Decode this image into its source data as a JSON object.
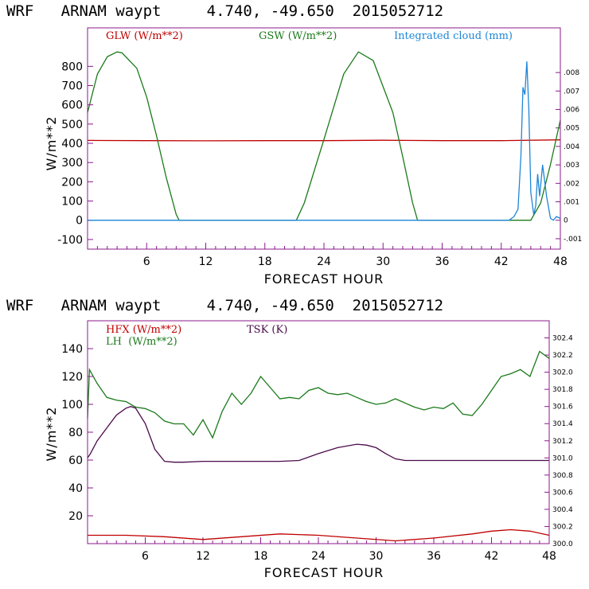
{
  "chart_data": [
    {
      "type": "line",
      "title": "WRF   ARNAM waypt     4.740, -49.650  2015052712",
      "xlabel": "FORECAST HOUR",
      "ylabel": "W/m**2",
      "xlim": [
        0,
        48
      ],
      "ylim": [
        -150,
        1000
      ],
      "x_ticks": [
        6,
        12,
        18,
        24,
        30,
        36,
        42,
        48
      ],
      "y_ticks": [
        -100,
        0,
        100,
        200,
        300,
        400,
        500,
        600,
        700,
        800
      ],
      "y2_ticks": [
        ".008",
        ".007",
        ".006",
        ".005",
        ".004",
        ".003",
        ".002",
        ".001",
        "0",
        "-.001"
      ],
      "legend": [
        "GLW (W/m**2)",
        "GSW (W/m**2)",
        "Integrated cloud (mm)"
      ],
      "colors": {
        "glw": "#c00000",
        "gsw": "#1a7a1a",
        "cloud": "#1f86d6"
      },
      "series": [
        {
          "name": "GLW (W/m**2)",
          "x": [
            0,
            6,
            12,
            18,
            24,
            30,
            36,
            42,
            48
          ],
          "values": [
            415,
            414,
            413,
            414,
            414,
            416,
            414,
            414,
            418
          ]
        },
        {
          "name": "GSW (W/m**2)",
          "x": [
            0,
            1,
            2,
            3,
            3.5,
            5,
            6,
            7,
            8,
            9,
            9.3,
            21.2,
            22,
            24,
            26,
            27.5,
            29,
            31,
            32,
            33,
            33.5,
            45,
            46,
            47,
            48
          ],
          "values": [
            560,
            760,
            850,
            875,
            870,
            790,
            640,
            440,
            220,
            30,
            0,
            0,
            90,
            420,
            760,
            875,
            830,
            560,
            330,
            90,
            0,
            0,
            90,
            290,
            520
          ]
        },
        {
          "name": "Integrated cloud (mm)",
          "x": [
            0,
            42.8,
            43.3,
            43.7,
            44,
            44.2,
            44.4,
            44.6,
            44.8,
            45,
            45.3,
            45.5,
            45.7,
            45.9,
            46.2,
            46.6,
            47,
            47.3,
            47.6,
            48
          ],
          "values": [
            0,
            0,
            0.0002,
            0.0006,
            0.0035,
            0.0072,
            0.0068,
            0.0086,
            0.006,
            0.0015,
            0.0003,
            0.0008,
            0.0025,
            0.0013,
            0.003,
            0.0013,
            0.0001,
            0,
            0.0002,
            0.0001
          ]
        }
      ]
    },
    {
      "type": "line",
      "title": "WRF   ARNAM waypt     4.740, -49.650  2015052712",
      "xlabel": "FORECAST HOUR",
      "ylabel": "W/m**2",
      "xlim": [
        0,
        48
      ],
      "ylim": [
        0,
        160
      ],
      "x_ticks": [
        6,
        12,
        18,
        24,
        30,
        36,
        42,
        48
      ],
      "y_ticks": [
        20,
        40,
        60,
        80,
        100,
        120,
        140
      ],
      "y2lim": [
        300.0,
        302.6
      ],
      "y2_ticks": [
        "302.4",
        "302.2",
        "302.0",
        "301.8",
        "301.6",
        "301.4",
        "301.2",
        "301.0",
        "300.8",
        "300.6",
        "300.4",
        "300.2",
        "300.0"
      ],
      "legend": [
        "HFX (W/m**2)",
        "LH  (W/m**2)",
        "TSK (K)"
      ],
      "colors": {
        "hfx": "#c00000",
        "lh": "#1a7a1a",
        "tsk": "#4a0a4a"
      },
      "series": [
        {
          "name": "HFX (W/m**2)",
          "x": [
            0,
            4,
            8,
            12,
            16,
            20,
            24,
            28,
            32,
            36,
            40,
            42,
            44,
            46,
            48
          ],
          "values": [
            6,
            6,
            5,
            3,
            5,
            7,
            6,
            4,
            2,
            4,
            7,
            9,
            10,
            9,
            6
          ]
        },
        {
          "name": "LH  (W/m**2)",
          "x": [
            0,
            0.2,
            1,
            2,
            3,
            4,
            5,
            6,
            7,
            8,
            9,
            10,
            11,
            12,
            13,
            14,
            15,
            16,
            17,
            18,
            19,
            20,
            21,
            22,
            23,
            24,
            25,
            26,
            27,
            28,
            29,
            30,
            31,
            32,
            33,
            34,
            35,
            36,
            37,
            38,
            39,
            40,
            41,
            42,
            43,
            44,
            45,
            46,
            47,
            48
          ],
          "values": [
            90,
            125,
            115,
            105,
            103,
            102,
            98,
            97,
            94,
            88,
            86,
            86,
            78,
            89,
            76,
            95,
            108,
            100,
            108,
            120,
            112,
            104,
            105,
            104,
            110,
            112,
            108,
            107,
            108,
            105,
            102,
            100,
            101,
            104,
            101,
            98,
            96,
            98,
            97,
            101,
            93,
            92,
            100,
            110,
            120,
            122,
            125,
            120,
            138,
            133
          ]
        },
        {
          "name": "TSK (K)",
          "x": [
            0,
            0.3,
            1,
            2,
            3,
            4,
            4.5,
            5,
            6,
            7,
            8,
            9,
            10,
            12,
            14,
            18,
            20,
            22,
            24,
            26,
            28,
            29,
            30,
            31,
            32,
            33,
            36,
            40,
            44,
            48
          ],
          "values": [
            301.0,
            301.05,
            301.2,
            301.35,
            301.5,
            301.58,
            301.6,
            301.58,
            301.4,
            301.1,
            300.96,
            300.95,
            300.95,
            300.96,
            300.96,
            300.96,
            300.96,
            300.97,
            301.05,
            301.12,
            301.16,
            301.15,
            301.12,
            301.05,
            300.99,
            300.97,
            300.97,
            300.97,
            300.97,
            300.97
          ]
        }
      ]
    }
  ]
}
